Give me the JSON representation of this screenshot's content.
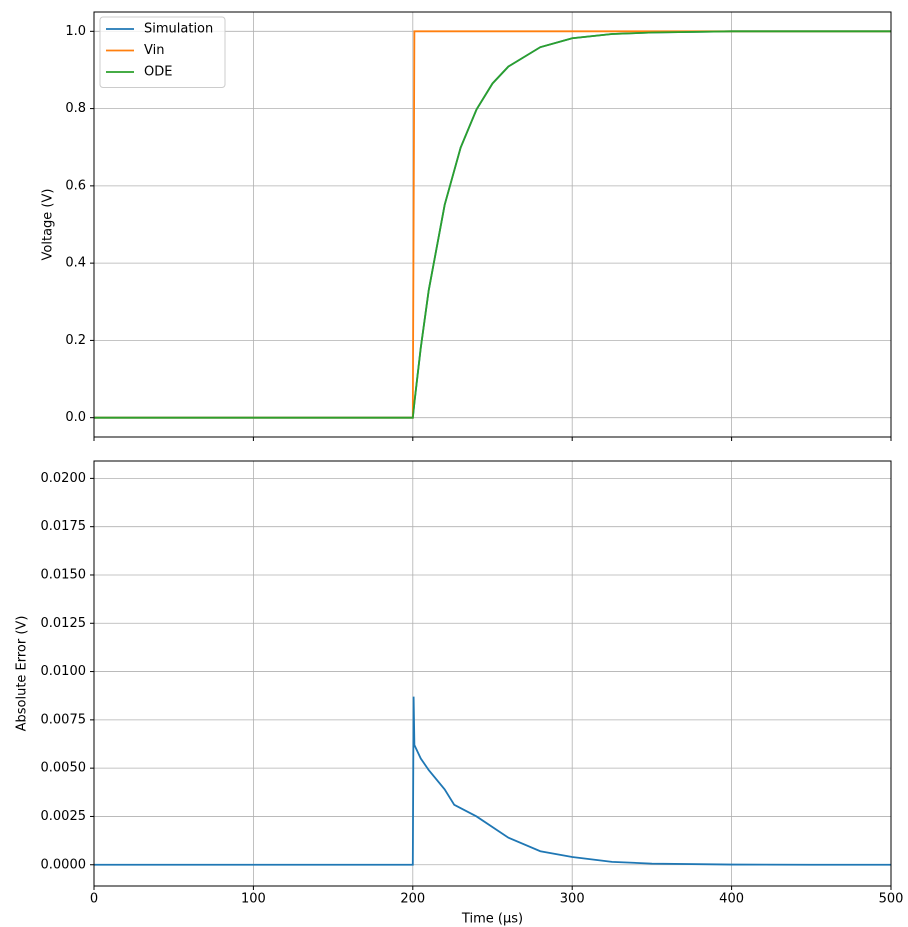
{
  "chart_data": [
    {
      "type": "line",
      "x": [
        0,
        50,
        100,
        150,
        200,
        201,
        205,
        210,
        220,
        230,
        240,
        250,
        260,
        280,
        300,
        325,
        350,
        400,
        450,
        500
      ],
      "series": [
        {
          "name": "Simulation",
          "color": "#1f77b4",
          "values": [
            0,
            0,
            0,
            0,
            0,
            0.039,
            0.181,
            0.33,
            0.551,
            0.699,
            0.798,
            0.865,
            0.909,
            0.959,
            0.982,
            0.993,
            0.997,
            1.0,
            1.0,
            1.0
          ]
        },
        {
          "name": "Vin",
          "color": "#ff7f0e",
          "values": [
            0,
            0,
            0,
            0,
            0,
            1,
            1,
            1,
            1,
            1,
            1,
            1,
            1,
            1,
            1,
            1,
            1,
            1,
            1,
            1
          ]
        },
        {
          "name": "ODE",
          "color": "#2ca02c",
          "values": [
            0,
            0,
            0,
            0,
            0,
            0.039,
            0.181,
            0.33,
            0.551,
            0.699,
            0.798,
            0.865,
            0.909,
            0.959,
            0.982,
            0.993,
            0.997,
            1.0,
            1.0,
            1.0
          ]
        }
      ],
      "ylabel": "Voltage (V)",
      "xlim": [
        0,
        500
      ],
      "xticks": [
        0,
        100,
        200,
        300,
        400,
        500
      ],
      "show_xtick_labels": false,
      "ylim": [
        -0.05,
        1.05
      ],
      "yticks": [
        {
          "value": 0,
          "label": "0.0"
        },
        0.2,
        0.4,
        0.6,
        0.8,
        {
          "value": 1,
          "label": "1.0"
        }
      ],
      "grid": true,
      "legend": "upper left"
    },
    {
      "type": "line",
      "x": [
        0,
        100,
        200,
        200.5,
        201,
        205,
        210,
        220,
        226,
        240,
        260,
        280,
        300,
        325,
        350,
        400,
        450,
        500
      ],
      "series": [
        {
          "name": "Absolute Error",
          "color": "#1f77b4",
          "values": [
            0,
            0,
            0,
            0.0087,
            0.0062,
            0.0055,
            0.0049,
            0.0039,
            0.0031,
            0.0025,
            0.0014,
            0.0007,
            0.0004,
            0.00015,
            6e-05,
            1e-05,
            0,
            0
          ]
        }
      ],
      "xlabel": "Time (µs)",
      "ylabel": "Absolute Error (V)",
      "xlim": [
        0,
        500
      ],
      "xticks": [
        0,
        100,
        200,
        300,
        400,
        500
      ],
      "show_xtick_labels": true,
      "ylim": [
        -0.0011,
        0.0209
      ],
      "yticks": [
        {
          "value": 0,
          "label": "0.0000"
        },
        0.0025,
        {
          "value": 0.005,
          "label": "0.0050"
        },
        0.0075,
        {
          "value": 0.01,
          "label": "0.0100"
        },
        0.0125,
        {
          "value": 0.015,
          "label": "0.0150"
        },
        0.0175,
        {
          "value": 0.02,
          "label": "0.0200"
        }
      ],
      "grid": true
    }
  ]
}
